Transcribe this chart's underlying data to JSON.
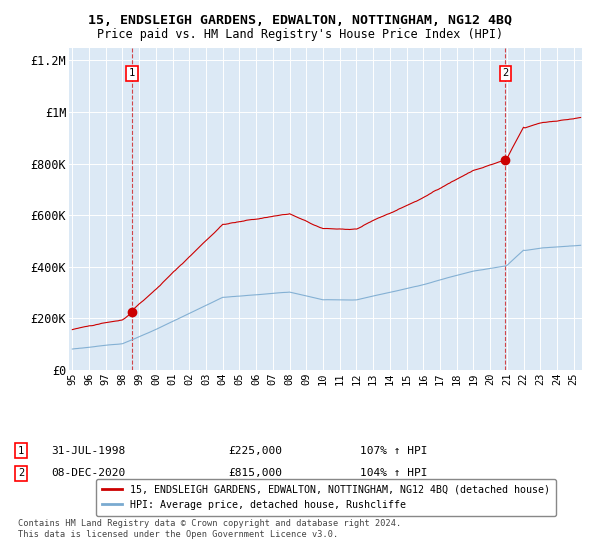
{
  "title": "15, ENDSLEIGH GARDENS, EDWALTON, NOTTINGHAM, NG12 4BQ",
  "subtitle": "Price paid vs. HM Land Registry's House Price Index (HPI)",
  "legend_line1": "15, ENDSLEIGH GARDENS, EDWALTON, NOTTINGHAM, NG12 4BQ (detached house)",
  "legend_line2": "HPI: Average price, detached house, Rushcliffe",
  "sale1_date": "31-JUL-1998",
  "sale1_price": "£225,000",
  "sale1_hpi": "107% ↑ HPI",
  "sale2_date": "08-DEC-2020",
  "sale2_price": "£815,000",
  "sale2_hpi": "104% ↑ HPI",
  "footer": "Contains HM Land Registry data © Crown copyright and database right 2024.\nThis data is licensed under the Open Government Licence v3.0.",
  "xlim": [
    1994.8,
    2025.5
  ],
  "ylim": [
    0,
    1250000
  ],
  "yticks": [
    0,
    200000,
    400000,
    600000,
    800000,
    1000000,
    1200000
  ],
  "ytick_labels": [
    "£0",
    "£200K",
    "£400K",
    "£600K",
    "£800K",
    "£1M",
    "£1.2M"
  ],
  "plot_bg": "#dce9f5",
  "fig_bg": "#ffffff",
  "red_color": "#cc0000",
  "blue_color": "#7aaad0",
  "sale1_year": 1998.58,
  "sale1_value": 225000,
  "sale2_year": 2020.92,
  "sale2_value": 815000,
  "figsize": [
    6.0,
    5.6
  ],
  "dpi": 100
}
